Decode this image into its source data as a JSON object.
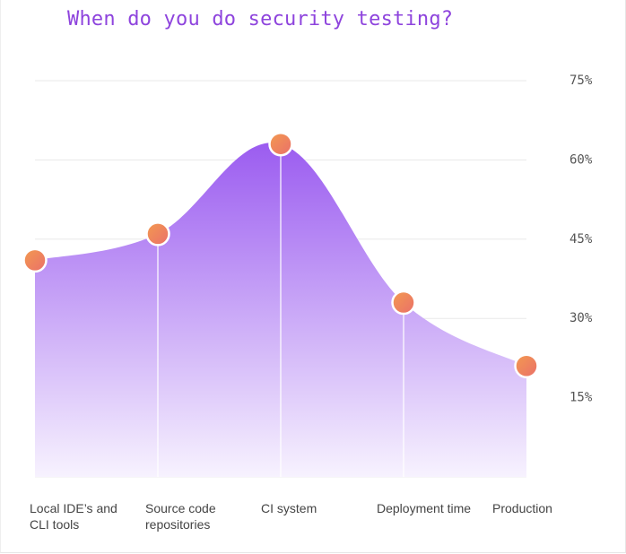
{
  "chart_data": {
    "type": "area",
    "title": "When do you do security testing?",
    "categories": [
      "Local IDE’s and CLI tools",
      "Source code repositories",
      "CI system",
      "Deployment time",
      "Production"
    ],
    "category_lines": [
      [
        "Local IDE’s and",
        "CLI tools"
      ],
      [
        "Source code",
        "repositories"
      ],
      [
        "CI system"
      ],
      [
        "Deployment time"
      ],
      [
        "Production"
      ]
    ],
    "values": [
      41,
      46,
      63,
      33,
      21
    ],
    "ylim": [
      0,
      75
    ],
    "yticks": [
      15,
      30,
      45,
      60,
      75
    ],
    "ytick_labels": [
      "15%",
      "30%",
      "45%",
      "60%",
      "75%"
    ],
    "grid": true,
    "fill_top_color": "#9b5cf0",
    "fill_bottom_color": "#f7f2fe",
    "marker_color": "#f08a5a",
    "title_color": "#8e44dd"
  }
}
